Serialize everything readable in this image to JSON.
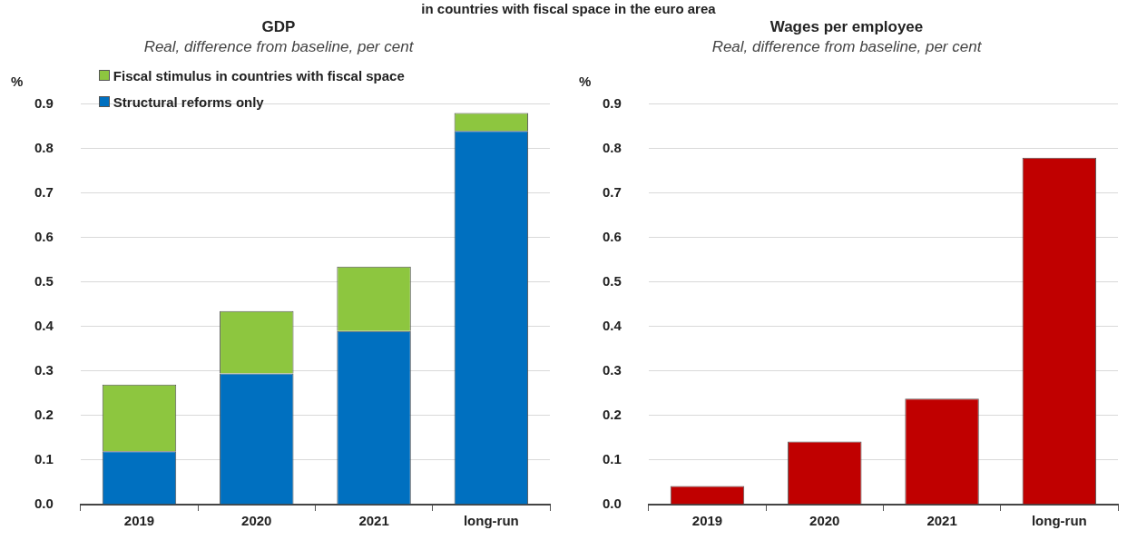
{
  "chart_data": [
    {
      "type": "bar",
      "title": "GDP",
      "subtitle": "Real, difference from baseline, per cent",
      "ylabel": "%",
      "annotations": [
        "in countries with fiscal space in the euro area"
      ],
      "categories": [
        "2019",
        "2020",
        "2021",
        "long-run"
      ],
      "series": [
        {
          "name": "Structural reforms only",
          "color": "#0070c0",
          "values": [
            0.12,
            0.295,
            0.39,
            0.84
          ]
        },
        {
          "name": "Fiscal stimulus in countries with fiscal space",
          "color": "#8dc63f",
          "values": [
            0.15,
            0.14,
            0.145,
            0.04
          ]
        }
      ],
      "stacked": true,
      "ylim": [
        0,
        0.9
      ],
      "yticks": [
        {
          "value": 0,
          "label": "0.0"
        },
        0.1,
        0.2,
        0.3,
        0.4,
        0.5,
        0.6,
        0.7,
        0.8,
        0.9
      ],
      "grid": "y",
      "legend": "top left"
    },
    {
      "type": "bar",
      "title": "Wages per employee",
      "subtitle": "Real, difference from baseline, per cent",
      "ylabel": "%",
      "categories": [
        "2019",
        "2020",
        "2021",
        "long-run"
      ],
      "series": [
        {
          "color": "#c00000",
          "values": [
            0.042,
            0.142,
            0.238,
            0.78
          ]
        }
      ],
      "ylim": [
        0,
        0.9
      ],
      "yticks": [
        {
          "value": 0,
          "label": "0.0"
        },
        0.1,
        0.2,
        0.3,
        0.4,
        0.5,
        0.6,
        0.7,
        0.8,
        0.9
      ],
      "grid": "y",
      "legend": false
    }
  ]
}
